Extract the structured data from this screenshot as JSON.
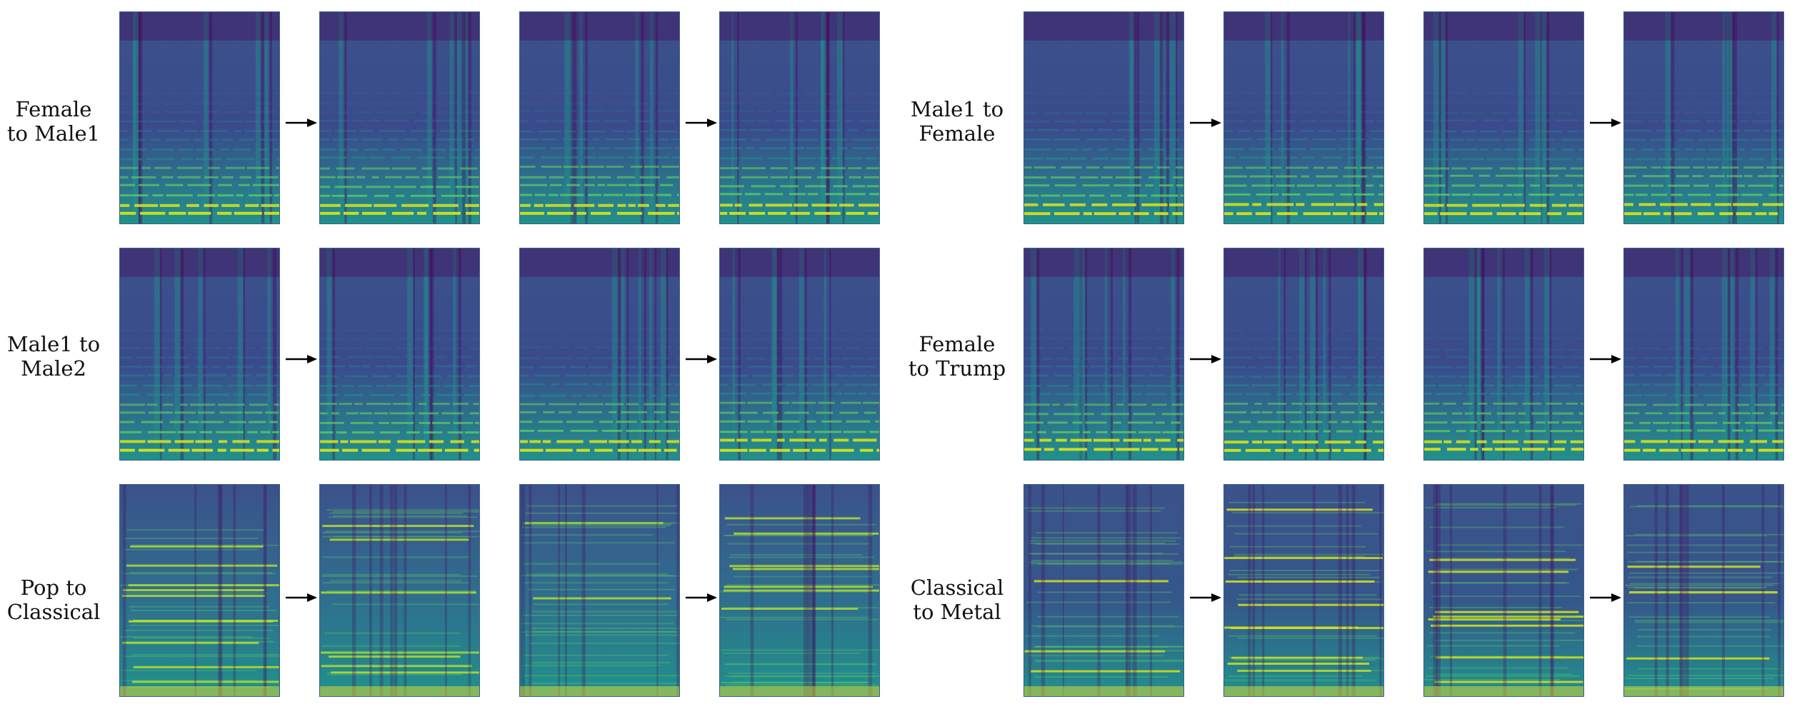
{
  "panels": [
    {
      "label_lines": [
        "Female",
        "to Male1"
      ],
      "kind": "speech",
      "colors": {
        "bg": "#3a4a8c",
        "harmonic": "#d8e219"
      }
    },
    {
      "label_lines": [
        "Male1 to",
        "Female"
      ],
      "kind": "speech",
      "colors": {
        "bg": "#3a4a8c",
        "harmonic": "#d8e219"
      }
    },
    {
      "label_lines": [
        "Male1 to",
        "Male2"
      ],
      "kind": "speech",
      "colors": {
        "bg": "#3a4a8c",
        "harmonic": "#d8e219"
      }
    },
    {
      "label_lines": [
        "Female",
        "to Trump"
      ],
      "kind": "speech",
      "colors": {
        "bg": "#3a4a8c",
        "harmonic": "#d8e219"
      }
    },
    {
      "label_lines": [
        "Pop to",
        "Classical"
      ],
      "kind": "music",
      "colors": {
        "bg": "#2f6f8e",
        "harmonic": "#b5de2b"
      }
    },
    {
      "label_lines": [
        "Classical",
        "to Metal"
      ],
      "kind": "music",
      "colors": {
        "bg": "#35578b",
        "harmonic": "#d8e219"
      }
    }
  ],
  "colormap": [
    "#440154",
    "#3b528b",
    "#21918c",
    "#5ec962",
    "#fde725"
  ]
}
